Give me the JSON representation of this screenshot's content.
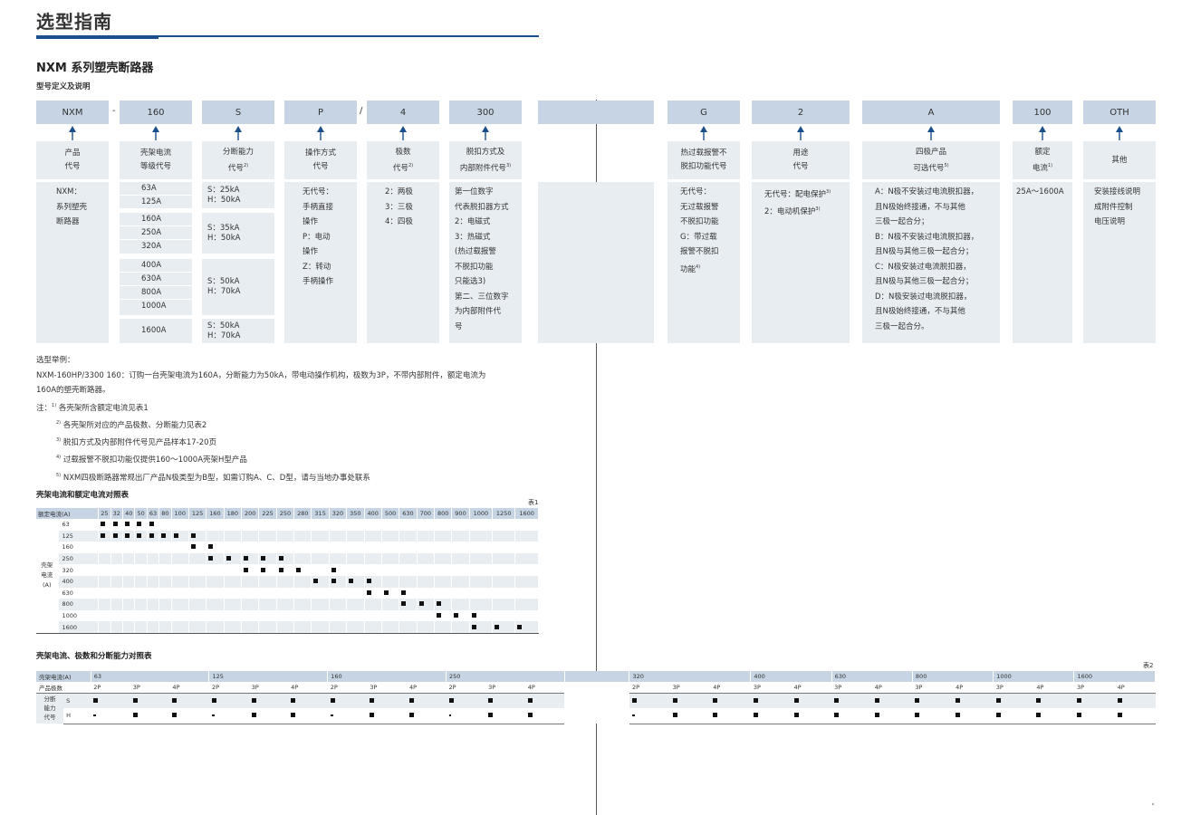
{
  "page": {
    "title": "选型指南",
    "section_title": "NXM 系列塑壳断路器",
    "sub_title": "型号定义及说明"
  },
  "codes": [
    {
      "id": "nxm",
      "text": "NXM"
    },
    {
      "id": "160",
      "text": "160"
    },
    {
      "id": "s",
      "text": "S"
    },
    {
      "id": "p",
      "text": "P"
    },
    {
      "id": "4",
      "text": "4"
    },
    {
      "id": "300",
      "text": "300"
    },
    {
      "id": "blank",
      "text": ""
    },
    {
      "id": "g",
      "text": "G"
    },
    {
      "id": "2",
      "text": "2"
    },
    {
      "id": "a",
      "text": "A"
    },
    {
      "id": "100",
      "text": "100"
    },
    {
      "id": "oth",
      "text": "OTH"
    }
  ],
  "separators": {
    "dash": "-",
    "slash": "/"
  },
  "labels": [
    {
      "lines": [
        "产品",
        "代号"
      ]
    },
    {
      "lines": [
        "壳架电流",
        "等级代号"
      ]
    },
    {
      "lines": [
        "分断能力",
        "代号"
      ],
      "sup": "2)"
    },
    {
      "lines": [
        "操作方式",
        "代号"
      ]
    },
    {
      "lines": [
        "极数",
        "代号"
      ],
      "sup": "2)"
    },
    {
      "lines": [
        "脱扣方式及",
        "内部附件代号"
      ],
      "sup": "3)"
    },
    {
      "lines": [
        "热过载报警不",
        "脱扣功能代号"
      ]
    },
    {
      "lines": [
        "用途",
        "代号"
      ]
    },
    {
      "lines": [
        "四极产品",
        "可选代号"
      ],
      "sup": "5)"
    },
    {
      "lines": [
        "额定",
        "电流"
      ],
      "sup": "1)"
    },
    {
      "lines": [
        "其他"
      ]
    }
  ],
  "desc": {
    "product": [
      "NXM：",
      "系列塑壳",
      "断路器"
    ],
    "frame_currents": [
      [
        "63A",
        "125A"
      ],
      [
        "160A",
        "250A",
        "320A"
      ],
      [
        "400A",
        "630A",
        "800A",
        "1000A"
      ],
      [
        "1600A"
      ]
    ],
    "breaking": [
      [
        "S：25kA",
        "H：50kA"
      ],
      [
        "S：35kA",
        "H：50kA"
      ],
      [
        "S：50kA",
        "H：70kA"
      ],
      [
        "S：50kA",
        "H：70kA"
      ]
    ],
    "operation": [
      "无代号：",
      "手柄直接",
      "操作",
      "P：电动",
      "操作",
      "Z：转动",
      "手柄操作"
    ],
    "poles": [
      "2：两极",
      "3：三极",
      "4：四极"
    ],
    "trip": [
      "第一位数字",
      "代表脱扣器方式",
      "2：电磁式",
      "3：热磁式",
      "(热过载报警",
      "不脱扣功能",
      "只能选3)",
      "第二、三位数字",
      "为内部附件代",
      "号"
    ],
    "overload": [
      "无代号：",
      "无过载报警",
      "不脱扣功能",
      "G：带过载",
      "报警不脱扣",
      "功能"
    ],
    "overload_sup": "4)",
    "usage": [
      {
        "text": "无代号：配电保护",
        "sup": "3)"
      },
      {
        "text": "2：电动机保护",
        "sup": "3)"
      }
    ],
    "four_pole": [
      "A：N极不安装过电流脱扣器，",
      "且N极始终接通，不与其他",
      "三极一起合分；",
      "B：N极不安装过电流脱扣器，",
      "且N极与其他三极一起合分；",
      "C：N极安装过电流脱扣器，",
      "且N极与其他三极一起合分；",
      "D：N极安装过电流脱扣器，",
      "且N极始终接通，不与其他",
      "三极一起合分。"
    ],
    "rated": [
      "25A～1600A"
    ],
    "other": [
      "安装接线说明",
      "成附件控制",
      "电压说明"
    ]
  },
  "notes": {
    "example_heading": "选型举例：",
    "example_line1": "NXM-160HP/3300 160：订购一台壳架电流为160A，分断能力为50kA，带电动操作机构，极数为3P，不带内部附件，额定电流为",
    "example_line2": "160A的塑壳断路器。",
    "note_prefix": "注：",
    "items": [
      {
        "sup": "1)",
        "text": "各壳架所含额定电流见表1"
      },
      {
        "sup": "2)",
        "text": "各壳架所对应的产品极数、分断能力见表2"
      },
      {
        "sup": "3)",
        "text": "脱扣方式及内部附件代号见产品样本17-20页"
      },
      {
        "sup": "4)",
        "text": "过载报警不脱扣功能仅提供160～1000A壳架H型产品"
      },
      {
        "sup": "5)",
        "text": "NXM四极断路器常规出厂产品N极类型为B型，如需订购A、C、D型，请与当地办事处联系"
      }
    ]
  },
  "table1": {
    "title": "壳架电流和额定电流对照表",
    "tag": "表1",
    "header_label": "额定电流(A)",
    "side_label": [
      "壳架",
      "电流",
      "(A)"
    ],
    "rated": [
      "25",
      "32",
      "40",
      "50",
      "63",
      "80",
      "100",
      "125",
      "160",
      "180",
      "200",
      "225",
      "250",
      "280",
      "315",
      "320",
      "350",
      "400",
      "500",
      "630",
      "700",
      "800",
      "900",
      "1000",
      "1250",
      "1600"
    ],
    "rows": [
      {
        "frame": "63",
        "marks": [
          0,
          1,
          2,
          3,
          4
        ]
      },
      {
        "frame": "125",
        "marks": [
          0,
          1,
          2,
          3,
          4,
          5,
          6,
          7
        ]
      },
      {
        "frame": "160",
        "marks": [
          7,
          8
        ]
      },
      {
        "frame": "250",
        "marks": [
          8,
          9,
          10,
          11,
          12
        ]
      },
      {
        "frame": "320",
        "marks": [
          10,
          11,
          12,
          13,
          15
        ]
      },
      {
        "frame": "400",
        "marks": [
          14,
          15,
          16,
          17
        ]
      },
      {
        "frame": "630",
        "marks": [
          17,
          18,
          19
        ]
      },
      {
        "frame": "800",
        "marks": [
          19,
          20,
          21
        ]
      },
      {
        "frame": "1000",
        "marks": [
          21,
          22,
          23
        ]
      },
      {
        "frame": "1600",
        "marks": [
          23,
          24,
          25
        ]
      }
    ]
  },
  "table2": {
    "title": "壳架电流、极数和分断能力对照表",
    "tag": "表2",
    "frame_label": "壳架电流(A)",
    "poles_label": "产品极数",
    "side_label": [
      "分断",
      "能力",
      "代号"
    ],
    "s_label": "S",
    "h_label": "H",
    "groups": [
      {
        "frame": "63",
        "poles": [
          "2P",
          "3P",
          "4P"
        ],
        "s": [
          "sq",
          "sq",
          "sq"
        ],
        "h": [
          "dash",
          "sq",
          "sq"
        ]
      },
      {
        "frame": "125",
        "poles": [
          "2P",
          "3P",
          "4P"
        ],
        "s": [
          "sq",
          "sq",
          "sq"
        ],
        "h": [
          "dash",
          "sq",
          "sq"
        ]
      },
      {
        "frame": "160",
        "poles": [
          "2P",
          "3P",
          "4P"
        ],
        "s": [
          "sq",
          "sq",
          "sq"
        ],
        "h": [
          "dash",
          "sq",
          "sq"
        ]
      },
      {
        "frame": "250",
        "poles": [
          "2P",
          "3P",
          "4P"
        ],
        "s": [
          "sq",
          "sq",
          "sq"
        ],
        "h": [
          "dot",
          "sq",
          "sq"
        ]
      },
      {
        "frame": "320",
        "poles": [
          "2P",
          "3P",
          "4P"
        ],
        "s": [
          "sq",
          "sq",
          "sq"
        ],
        "h": [
          "dash",
          "sq",
          "sq"
        ]
      },
      {
        "frame": "400",
        "poles": [
          "3P",
          "4P"
        ],
        "s": [
          "sq",
          "sq"
        ],
        "h": [
          "sq",
          "sq"
        ]
      },
      {
        "frame": "630",
        "poles": [
          "3P",
          "4P"
        ],
        "s": [
          "sq",
          "sq"
        ],
        "h": [
          "sq",
          "sq"
        ]
      },
      {
        "frame": "800",
        "poles": [
          "3P",
          "4P"
        ],
        "s": [
          "sq",
          "sq"
        ],
        "h": [
          "sq",
          "sq"
        ]
      },
      {
        "frame": "1000",
        "poles": [
          "3P",
          "4P"
        ],
        "s": [
          "sq",
          "sq"
        ],
        "h": [
          "sq",
          "sq"
        ]
      },
      {
        "frame": "1600",
        "poles": [
          "3P",
          "4P"
        ],
        "s": [
          "sq",
          "sq"
        ],
        "h": [
          "sq",
          "sq"
        ]
      }
    ]
  },
  "colors": {
    "accent": "#1a4f8c",
    "box_dark": "#c6d4e3",
    "box_light": "#e8edf2"
  }
}
